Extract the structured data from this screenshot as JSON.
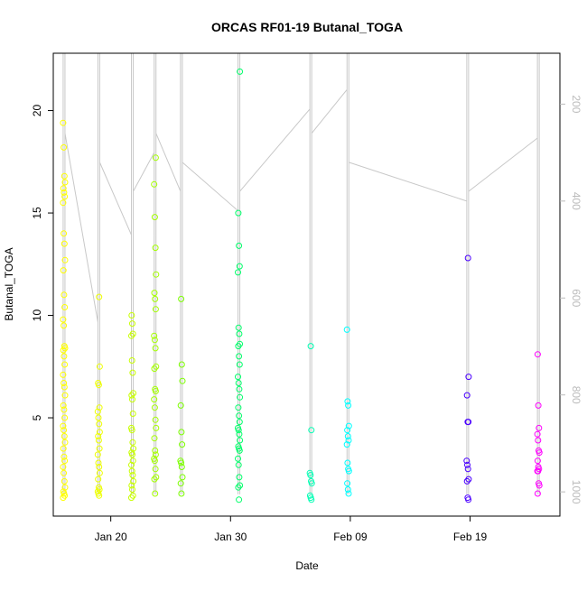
{
  "chart_data": {
    "type": "scatter",
    "title": "ORCAS RF01-19 Butanal_TOGA",
    "xlabel": "Date",
    "ylabel": "Butanal_TOGA",
    "x_ticks": [
      {
        "label": "Jan 20",
        "day": 20
      },
      {
        "label": "Jan 30",
        "day": 30
      },
      {
        "label": "Feb 09",
        "day": 40
      },
      {
        "label": "Feb 19",
        "day": 50
      }
    ],
    "y_ticks": [
      5,
      10,
      15,
      20
    ],
    "y2_ticks": [
      200,
      400,
      600,
      800,
      1000
    ],
    "xlim_days": [
      15.2,
      57.5
    ],
    "ylim": [
      0.2,
      22.8
    ],
    "y2lim": [
      1050,
      95
    ],
    "y2_reversed": true,
    "grid": false,
    "marker": "open-circle",
    "color_scale": "rainbow, yellow to magenta by flight date",
    "pressure_trace_color": "#c8c8c8",
    "series": [
      {
        "day": 16.1,
        "color": "#ffff00",
        "values": [
          19.4,
          18.2,
          16.8,
          16.5,
          16.2,
          16.0,
          15.8,
          15.5,
          14.0,
          13.5,
          12.7,
          12.2,
          11.0,
          10.4,
          9.8,
          9.5,
          8.5,
          8.4,
          8.3,
          8.0,
          7.6,
          7.1,
          6.7,
          6.5,
          6.1,
          5.6,
          5.4,
          5.0,
          4.6,
          4.4,
          4.1,
          3.8,
          3.5,
          3.1,
          2.9,
          2.6,
          2.3,
          1.9,
          1.6,
          1.4,
          1.3,
          1.2,
          1.1
        ]
      },
      {
        "day": 19.0,
        "color": "#eeff00",
        "values": [
          10.9,
          7.5,
          6.7,
          6.6,
          5.5,
          5.3,
          5.0,
          4.7,
          4.3,
          4.1,
          3.9,
          3.5,
          3.2,
          2.8,
          2.6,
          2.3,
          2.0,
          1.6,
          1.5,
          1.4,
          1.3,
          1.2
        ]
      },
      {
        "day": 21.8,
        "color": "#c8ff00",
        "values": [
          10.0,
          9.6,
          9.1,
          9.0,
          7.8,
          7.2,
          6.2,
          6.1,
          5.9,
          5.2,
          4.5,
          4.4,
          3.8,
          3.5,
          3.3,
          3.2,
          2.9,
          2.7,
          2.4,
          2.2,
          1.9,
          1.7,
          1.5,
          1.2,
          1.1
        ]
      },
      {
        "day": 23.7,
        "color": "#a4ff00",
        "values": [
          17.7,
          16.4,
          14.8,
          13.3,
          12.0,
          11.1,
          10.8,
          10.3,
          9.0,
          8.8,
          8.4,
          7.5,
          7.4,
          6.4,
          6.3,
          5.9,
          5.5,
          4.9,
          4.5,
          4.0,
          3.4,
          3.2,
          3.0,
          2.9,
          2.5,
          2.1,
          2.0,
          1.3
        ]
      },
      {
        "day": 25.9,
        "color": "#7cff00",
        "values": [
          10.8,
          7.6,
          6.8,
          5.6,
          4.3,
          3.7,
          2.9,
          2.8,
          2.6,
          2.1,
          1.8,
          1.3
        ]
      },
      {
        "day": 30.7,
        "color": "#00ff6a",
        "values": [
          21.9,
          15.0,
          13.4,
          12.4,
          12.1,
          9.4,
          9.1,
          8.6,
          8.5,
          8.0,
          7.6,
          7.0,
          6.7,
          6.4,
          6.0,
          5.5,
          5.1,
          4.8,
          4.5,
          4.4,
          4.2,
          3.9,
          3.6,
          3.5,
          3.4,
          3.0,
          2.7,
          2.1,
          1.7,
          1.6,
          1.0
        ]
      },
      {
        "day": 36.7,
        "color": "#00ffb4",
        "values": [
          8.5,
          4.4,
          2.3,
          2.2,
          1.9,
          1.8,
          1.2,
          1.1,
          1.0
        ]
      },
      {
        "day": 39.8,
        "color": "#00ffff",
        "values": [
          9.3,
          5.8,
          5.6,
          4.6,
          4.4,
          4.1,
          3.9,
          3.7,
          2.8,
          2.5,
          2.4,
          1.8,
          1.5,
          1.3
        ]
      },
      {
        "day": 49.8,
        "color": "#4a00ff",
        "values": [
          12.8,
          7.0,
          6.1,
          4.8,
          4.8,
          2.9,
          2.7,
          2.5,
          2.0,
          1.9,
          1.1,
          1.0
        ]
      },
      {
        "day": 55.7,
        "color": "#ff00ff",
        "values": [
          8.1,
          5.6,
          4.5,
          4.2,
          3.9,
          3.4,
          3.3,
          2.9,
          2.6,
          2.5,
          2.4,
          2.4,
          1.8,
          1.7,
          1.3
        ]
      }
    ]
  }
}
